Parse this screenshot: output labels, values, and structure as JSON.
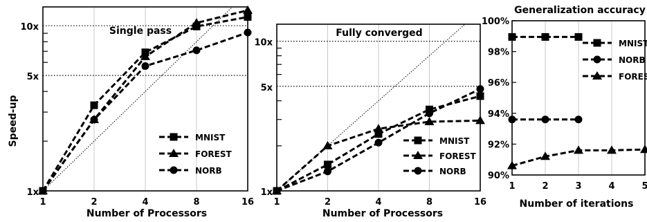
{
  "chart_data": [
    {
      "type": "line",
      "title": "Single pass",
      "xlabel": "Number of Processors",
      "ylabel": "Speed-up",
      "scale": "log-log",
      "x": [
        1,
        2,
        4,
        8,
        16
      ],
      "x_tick_labels": [
        "1",
        "2",
        "4",
        "8",
        "16"
      ],
      "y_ticks": [
        1,
        5,
        10
      ],
      "y_tick_labels": [
        "1x",
        "5x",
        "10x"
      ],
      "ylim": [
        1,
        13
      ],
      "reference_lines": [
        5,
        10
      ],
      "ideal_line": true,
      "legend_position": "lower-right",
      "series": [
        {
          "name": "MNIST",
          "marker": "square",
          "values": [
            1,
            3.3,
            6.9,
            9.9,
            11.3
          ]
        },
        {
          "name": "FOREST",
          "marker": "triangle",
          "values": [
            1,
            2.7,
            6.5,
            10.4,
            12.4
          ]
        },
        {
          "name": "NORB",
          "marker": "circle",
          "values": [
            1,
            2.7,
            5.7,
            7.1,
            9.1
          ]
        }
      ]
    },
    {
      "type": "line",
      "title": "Fully converged",
      "xlabel": "Number of Processors",
      "ylabel": "",
      "scale": "log-log",
      "x": [
        1,
        2,
        4,
        8,
        16
      ],
      "x_tick_labels": [
        "1",
        "2",
        "4",
        "8",
        "16"
      ],
      "y_ticks": [
        1,
        5,
        10
      ],
      "y_tick_labels": [
        "1x",
        "5x",
        "10x"
      ],
      "ylim": [
        1,
        13
      ],
      "reference_lines": [
        5,
        10
      ],
      "ideal_line": true,
      "legend_position": "lower-right",
      "series": [
        {
          "name": "MNIST",
          "marker": "square",
          "values": [
            1,
            1.5,
            2.4,
            3.5,
            4.3
          ]
        },
        {
          "name": "FOREST",
          "marker": "triangle",
          "values": [
            1,
            2.0,
            2.6,
            2.9,
            2.95
          ]
        },
        {
          "name": "NORB",
          "marker": "circle",
          "values": [
            1,
            1.35,
            2.1,
            3.3,
            4.8
          ]
        }
      ]
    },
    {
      "type": "line",
      "title": "Generalization accuracy",
      "xlabel": "Number of iterations",
      "ylabel": "",
      "x": [
        1,
        2,
        3,
        4,
        5
      ],
      "x_tick_labels": [
        "1",
        "2",
        "3",
        "4",
        "5"
      ],
      "y_ticks": [
        90,
        92,
        94,
        96,
        98,
        100
      ],
      "y_tick_labels": [
        "90%",
        "92%",
        "94%",
        "96%",
        "98%",
        "100%"
      ],
      "ylim": [
        90,
        100
      ],
      "legend_position": "upper-right",
      "series": [
        {
          "name": "MNIST",
          "marker": "square",
          "x": [
            1,
            2,
            3
          ],
          "values": [
            98.95,
            98.95,
            98.95
          ]
        },
        {
          "name": "NORB",
          "marker": "circle",
          "x": [
            1,
            2,
            3
          ],
          "values": [
            93.6,
            93.6,
            93.6
          ]
        },
        {
          "name": "FOREST",
          "marker": "triangle",
          "x": [
            1,
            2,
            3,
            4,
            5
          ],
          "values": [
            90.6,
            91.2,
            91.6,
            91.6,
            91.65
          ]
        }
      ]
    }
  ]
}
